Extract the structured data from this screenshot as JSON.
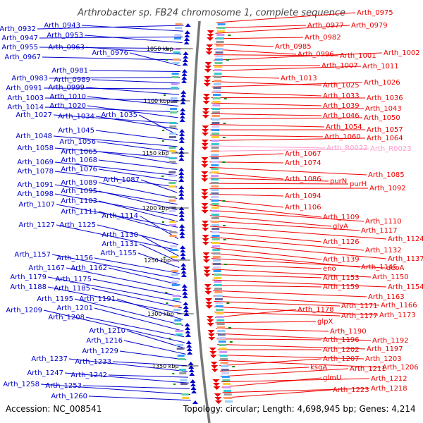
{
  "title": "Arthrobacter sp. FB24 chromosome 1, complete sequence",
  "accession_text": "Accession: NC_008541",
  "topology_text": "Topology: circular; Length: 4,698,945 bp; Genes: 4,214",
  "colors": {
    "forward": "#0000cc",
    "reverse": "#ee0000",
    "rna": "#ff99cc",
    "backbone": "#777777",
    "tick": "#008800"
  },
  "kbp_marks": [
    "1050 kbp",
    "1100 kbp",
    "1150 kbp",
    "1200 kbp",
    "1250 kbp",
    "1300 kbp",
    "1350 kbp"
  ],
  "left_labels": [
    "Arth_0932",
    "Arth_0943",
    "Arth_0947",
    "Arth_0953",
    "Arth_0955",
    "Arth_0963",
    "Arth_0967",
    "Arth_0976",
    "Arth_0981",
    "Arth_0983",
    "Arth_0989",
    "Arth_0991",
    "Arth_0999",
    "Arth_1003",
    "Arth_1010",
    "Arth_1014",
    "Arth_1020",
    "Arth_1027",
    "Arth_1034",
    "Arth_1035",
    "Arth_1045",
    "Arth_1048",
    "Arth_1056",
    "Arth_1058",
    "Arth_1065",
    "Arth_1068",
    "Arth_1069",
    "Arth_1076",
    "Arth_1078",
    "Arth_1087",
    "Arth_1089",
    "Arth_1091",
    "Arth_1095",
    "Arth_1098",
    "Arth_1103",
    "Arth_1107",
    "Arth_1111",
    "Arth_1114",
    "Arth_1125",
    "Arth_1127",
    "Arth_1130",
    "Arth_1131",
    "Arth_1155",
    "Arth_1156",
    "Arth_1157",
    "Arth_1162",
    "Arth_1167",
    "Arth_1175",
    "Arth_1179",
    "Arth_1185",
    "Arth_1188",
    "Arth_1191",
    "Arth_1195",
    "Arth_1201",
    "Arth_1208",
    "Arth_1209",
    "Arth_1210",
    "Arth_1216",
    "Arth_1229",
    "Arth_1233",
    "Arth_1237",
    "Arth_1242",
    "Arth_1247",
    "Arth_1253",
    "Arth_1258",
    "Arth_1260"
  ],
  "right_labels": [
    "Arth_0975",
    "Arth_0977",
    "Arth_0979",
    "Arth_0982",
    "Arth_0985",
    "Arth_0996",
    "Arth_1001",
    "Arth_1002",
    "Arth_1007",
    "Arth_1011",
    "Arth_1013",
    "Arth_1025",
    "Arth_1026",
    "Arth_1033",
    "Arth_1036",
    "Arth_1039",
    "Arth_1043",
    "Arth_1046",
    "Arth_1050",
    "Arth_1054",
    "Arth_1057",
    "Arth_1060",
    "Arth_1064",
    "Arth_R0022",
    "Arth_R0023",
    "Arth_1067",
    "Arth_1074",
    "Arth_1085",
    "Arth_1086",
    "purN",
    "purH",
    "Arth_1092",
    "Arth_1094",
    "Arth_1106",
    "Arth_1109",
    "Arth_1110",
    "glyA",
    "Arth_1117",
    "Arth_1124",
    "Arth_1126",
    "Arth_1132",
    "Arth_1137",
    "Arth_1139",
    "Arth_1145",
    "deoA",
    "eno",
    "Arth_1150",
    "Arth_1153",
    "Arth_1154",
    "Arth_1159",
    "Arth_1163",
    "Arth_1166",
    "Arth_1171",
    "Arth_1173",
    "Arth_1177",
    "Arth_1178",
    "glpX",
    "Arth_1190",
    "Arth_1192",
    "Arth_1196",
    "Arth_1197",
    "Arth_1202",
    "Arth_1203",
    "Arth_1206",
    "Arth_1207",
    "ksgA",
    "Arth_1211",
    "Arth_1212",
    "glmU",
    "Arth_1218",
    "Arth_1223"
  ]
}
